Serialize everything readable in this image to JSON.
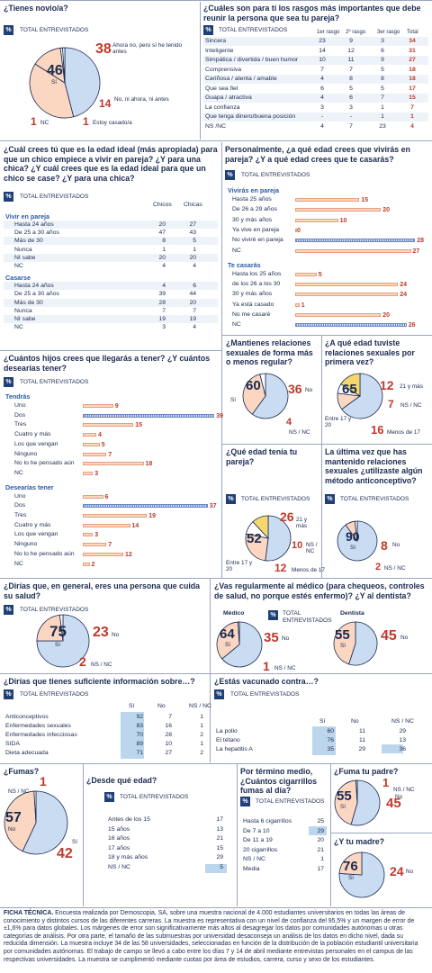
{
  "common": {
    "total": "TOTAL ENTREVISTADOS",
    "pct": "%"
  },
  "colors": {
    "blue_fill": "#c9dcf2",
    "red_fill": "#fbd6c0",
    "navy": "#1a2a50",
    "red": "#c0392b",
    "yellow": "#f5d76e",
    "highlight": "#bcd6ee"
  },
  "q1": {
    "title": "¿Tienes novio/a?",
    "slices": [
      {
        "label": "Sí",
        "value": 46,
        "color": "#c9dcf2"
      },
      {
        "label": "Ahora no, pero sí he tenido antes",
        "value": 38,
        "color": "#fbd6c0"
      },
      {
        "label": "No, ni ahora, ni antes",
        "value": 14,
        "color": "#fbd6c0"
      },
      {
        "label": "Estoy casado/a",
        "value": 1,
        "color": "#ffffff"
      },
      {
        "label": "NC",
        "value": 1,
        "color": "#ffffff"
      }
    ]
  },
  "q2": {
    "title": "¿Cuáles son para tí los rasgos más importantes que debe reunir la persona que sea tu pareja?",
    "cols": [
      "1er rasgo",
      "2º rasgo",
      "3er rasgo",
      "Total"
    ],
    "rows": [
      [
        "Sincera",
        "23",
        "9",
        "3",
        "34"
      ],
      [
        "Inteligente",
        "14",
        "12",
        "6",
        "31"
      ],
      [
        "Simpática / divertida / buen humor",
        "10",
        "11",
        "9",
        "27"
      ],
      [
        "Comprensiva",
        "7",
        "7",
        "5",
        "18"
      ],
      [
        "Cariñosa / atenta / amable",
        "4",
        "8",
        "8",
        "18"
      ],
      [
        "Que sea fiel",
        "6",
        "5",
        "5",
        "17"
      ],
      [
        "Guapa / atractiva",
        "4",
        "6",
        "7",
        "15"
      ],
      [
        "La confianza",
        "3",
        "3",
        "1",
        "7"
      ],
      [
        "Que tenga dinero/buena posición",
        "-",
        "-",
        "1",
        "1"
      ],
      [
        "NS /NC",
        "4",
        "7",
        "23",
        "4"
      ]
    ]
  },
  "q3": {
    "title": "¿Cuál crees tú que es la edad ideal (más apropiada) para que un chico empiece a vivir en pareja? ¿Y para una chica? ¿Y cuál crees que es la edad ideal para que un chico se case? ¿Y para una chica?",
    "cols": [
      "Chicos",
      "Chicas"
    ],
    "sections": [
      {
        "name": "Vivir en pareja",
        "rows": [
          [
            "Hasta 24 años",
            "20",
            "27"
          ],
          [
            "De 25 a 30 años",
            "47",
            "43"
          ],
          [
            "Más de 30",
            "8",
            "5"
          ],
          [
            "Nunca",
            "1",
            "1"
          ],
          [
            "NI sabe",
            "20",
            "20"
          ],
          [
            "NC",
            "4",
            "4"
          ]
        ]
      },
      {
        "name": "Casarse",
        "rows": [
          [
            "Hasta 24 años",
            "4",
            "6"
          ],
          [
            "De 25 a 30 años",
            "39",
            "44"
          ],
          [
            "Más de 30",
            "28",
            "20"
          ],
          [
            "Nunca",
            "7",
            "7"
          ],
          [
            "NI sabe",
            "19",
            "19"
          ],
          [
            "NC",
            "3",
            "4"
          ]
        ]
      }
    ]
  },
  "q4": {
    "title": "Personalmente, ¿a qué edad crees que vivirás en pareja? ¿Y a qué edad crees que te casarás?",
    "sections": [
      {
        "name": "Vivirás en pareja",
        "rows": [
          {
            "label": "Hasta 25 años",
            "value": 15
          },
          {
            "label": "De 26 a 29 años",
            "value": 20
          },
          {
            "label": "30 y más años",
            "value": 10
          },
          {
            "label": "Ya vive en pareja",
            "value": 0
          },
          {
            "label": "No viviré en pareja",
            "value": 28,
            "dotted": true
          },
          {
            "label": "NC",
            "value": 27
          }
        ]
      },
      {
        "name": "Te casarás",
        "rows": [
          {
            "label": "Hasta los 25 años",
            "value": 5
          },
          {
            "label": "de los 26 a los 30",
            "value": 24
          },
          {
            "label": "30 y más años",
            "value": 24
          },
          {
            "label": "Ya está casado",
            "value": 1
          },
          {
            "label": "No me casaré",
            "value": 20
          },
          {
            "label": "NC",
            "value": 26,
            "dotted": true
          }
        ]
      }
    ]
  },
  "q5": {
    "title": "¿Cuántos hijos crees que llegarás a tener? ¿Y cuántos desearías tener?",
    "sections": [
      {
        "name": "Tendrás",
        "rows": [
          {
            "label": "Uno",
            "value": 9
          },
          {
            "label": "Dos",
            "value": 39,
            "dotted": true
          },
          {
            "label": "Tres",
            "value": 15
          },
          {
            "label": "Cuatro y más",
            "value": 4
          },
          {
            "label": "Los que vengan",
            "value": 5
          },
          {
            "label": "Ninguno",
            "value": 7
          },
          {
            "label": "No lo he pensado aún",
            "value": 18
          },
          {
            "label": "NC",
            "value": 3
          }
        ]
      },
      {
        "name": "Desearías tener",
        "rows": [
          {
            "label": "Uno",
            "value": 6
          },
          {
            "label": "Dos",
            "value": 37,
            "dotted": true
          },
          {
            "label": "Tres",
            "value": 19
          },
          {
            "label": "Cuatro y más",
            "value": 14
          },
          {
            "label": "Los que vengan",
            "value": 3
          },
          {
            "label": "Ninguno",
            "value": 7
          },
          {
            "label": "No lo he pensado aún",
            "value": 12
          },
          {
            "label": "NC",
            "value": 2
          }
        ]
      }
    ]
  },
  "q6": {
    "title": "¿Mantienes relaciones sexuales de forma más o menos regular?",
    "slices": [
      {
        "label": "Sí",
        "value": 60,
        "color": "#c9dcf2"
      },
      {
        "label": "No",
        "value": 36,
        "color": "#fbd6c0"
      },
      {
        "label": "NS / NC",
        "value": 4,
        "color": "#ffffff"
      }
    ]
  },
  "q7": {
    "title": "¿A qué edad tuviste relaciones sexuales por primera vez?",
    "slices": [
      {
        "label": "Entre 17 y 20",
        "value": 65,
        "color": "#c9dcf2"
      },
      {
        "label": "21 y más",
        "value": 12,
        "color": "#fbd6c0"
      },
      {
        "label": "NS / NC",
        "value": 7,
        "color": "#ffffff"
      },
      {
        "label": "Menos de 17",
        "value": 16,
        "color": "#f5d76e"
      }
    ]
  },
  "q8": {
    "title": "¿Qué edad tenía tu pareja?",
    "slices": [
      {
        "label": "Entre 17 y 20",
        "value": 52,
        "color": "#c9dcf2"
      },
      {
        "label": "21 y más",
        "value": 26,
        "color": "#fbd6c0"
      },
      {
        "label": "NS / NC",
        "value": 10,
        "color": "#ffffff"
      },
      {
        "label": "Menos de 17",
        "value": 12,
        "color": "#f5d76e"
      }
    ]
  },
  "q9": {
    "title": "La última vez que has mantenido relaciones sexuales ¿utilizaste algún método anticonceptivo?",
    "slices": [
      {
        "label": "Sí",
        "value": 90,
        "color": "#c9dcf2"
      },
      {
        "label": "No",
        "value": 8,
        "color": "#fbd6c0"
      },
      {
        "label": "NS / NC",
        "value": 2,
        "color": "#ffffff"
      }
    ]
  },
  "q10": {
    "title": "¿Dirías que, en general, eres una persona que cuida su salud?",
    "slices": [
      {
        "label": "Sí",
        "value": 75,
        "color": "#c9dcf2"
      },
      {
        "label": "No",
        "value": 23,
        "color": "#fbd6c0"
      },
      {
        "label": "NS / NC",
        "value": 2,
        "color": "#ffffff"
      }
    ]
  },
  "q11": {
    "title": "¿Vas regularmente al médico (para chequeos, controles de salud, no porque estés enfermo)? ¿Y al dentista?",
    "medico": {
      "name": "Médico",
      "slices": [
        {
          "label": "Sí",
          "value": 64,
          "color": "#c9dcf2"
        },
        {
          "label": "No",
          "value": 35,
          "color": "#fbd6c0"
        },
        {
          "label": "NS / NC",
          "value": 1,
          "color": "#ffffff"
        }
      ]
    },
    "dentista": {
      "name": "Dentista",
      "slices": [
        {
          "label": "Sí",
          "value": 55,
          "color": "#c9dcf2"
        },
        {
          "label": "No",
          "value": 45,
          "color": "#fbd6c0"
        }
      ]
    }
  },
  "q12": {
    "title": "¿Dirías que tienes suficiente información sobre…?",
    "cols": [
      "Sí",
      "No",
      "NS / NC"
    ],
    "rows": [
      [
        "Anticonceptivos",
        "92",
        "7",
        "1"
      ],
      [
        "Enfermedades sexuales",
        "83",
        "16",
        "1"
      ],
      [
        "Enfermedades infecciosas",
        "70",
        "28",
        "2"
      ],
      [
        "SIDA",
        "89",
        "10",
        "1"
      ],
      [
        "Dieta adecuada",
        "71",
        "27",
        "2"
      ]
    ]
  },
  "q13": {
    "title": "¿Estás vacunado contra…?",
    "cols": [
      "Sí",
      "No",
      "NS / NC"
    ],
    "rows": [
      [
        "La polio",
        "60",
        "11",
        "29"
      ],
      [
        "El tétano",
        "76",
        "11",
        "13"
      ],
      [
        "La hepatitis A",
        "35",
        "29",
        "36"
      ]
    ]
  },
  "q14": {
    "title": "¿Fumas?",
    "slices": [
      {
        "label": "No",
        "value": 57,
        "color": "#c9dcf2"
      },
      {
        "label": "Sí",
        "value": 42,
        "color": "#fbd6c0"
      },
      {
        "label": "NS / NC",
        "value": 1,
        "color": "#ffffff"
      }
    ]
  },
  "q15": {
    "title": "¿Desde qué edad?",
    "rows": [
      [
        "Antes de los 15",
        "17"
      ],
      [
        "15 años",
        "13"
      ],
      [
        "16 años",
        "21"
      ],
      [
        "17 años",
        "15"
      ],
      [
        "18 y más años",
        "29"
      ],
      [
        "NS / NC",
        "5"
      ]
    ]
  },
  "q16": {
    "title": "Por término medio, ¿Cuántos cigarrillos fumas al día?",
    "rows": [
      [
        "Hasta 6 cigarrillos",
        "25"
      ],
      [
        "De 7 a 10",
        "29"
      ],
      [
        "De 11 a 19",
        "20"
      ],
      [
        "20 cigarrillos",
        "21"
      ],
      [
        "NS / NC",
        "1"
      ],
      [
        "Media",
        "17"
      ]
    ]
  },
  "q17": {
    "title": "¿Fuma tu padre?",
    "slices": [
      {
        "label": "Sí",
        "value": 55,
        "color": "#c9dcf2"
      },
      {
        "label": "No",
        "value": 45,
        "color": "#fbd6c0"
      },
      {
        "label": "NS / NC",
        "value": 1,
        "color": "#ffffff"
      }
    ]
  },
  "q18": {
    "title": "¿Y tu madre?",
    "slices": [
      {
        "label": "Sí",
        "value": 76,
        "color": "#c9dcf2"
      },
      {
        "label": "No",
        "value": 24,
        "color": "#fbd6c0"
      }
    ]
  },
  "footer": {
    "label": "FICHA TÉCNICA.",
    "text": "Encuesta realizada por Demoscopia, SA, sobre una muestra nacional de 4.000 estudiantes universitarios en todas las áreas de conocimiento y distintos cursos de las diferentes carreras. La muestra es representativa con un nivel de confianza del 95,5% y un margen de error de ±1,6% para datos globales. Los márgenes de error son significativamente más altos al desagregar los datos por comunidades autónomas u otras categorías de análisis. Por otra parte, el tamaño de las submuestras por universidad desaconseja un análisis de los datos en dicho nivel, dada su reducida dimensión. La muestra incluye 34 de las 58 universidades, seleccionadas en función de la distribución de la población estudiantil universitaria por comunidades autónomas. El trabajo de campo se llevó a cabo entre los días 7 y 14 de abril mediante entrevistas personales en el campus de las respectivas universidades. La muestra se cumplimentó mediante cuotas por área de estudios, carrera, curso y sexo de los estudiantes."
  },
  "chart_data": [
    {
      "type": "pie",
      "title": "¿Tienes novio/a?",
      "categories": [
        "Sí",
        "Ahora no, pero sí he tenido antes",
        "No, ni ahora, ni antes",
        "Estoy casado/a",
        "NC"
      ],
      "values": [
        46,
        38,
        14,
        1,
        1
      ]
    },
    {
      "type": "table",
      "title": "¿Cuáles son para tí los rasgos más importantes que debe reunir la persona que sea tu pareja?",
      "columns": [
        "1er rasgo",
        "2º rasgo",
        "3er rasgo",
        "Total"
      ]
    },
    {
      "type": "table",
      "title": "¿Cuál crees tú que es la edad ideal (más apropiada) para que un chico empiece a vivir en pareja? ¿Y para una chica? ¿Y cuál crees que es la edad ideal para que un chico se case? ¿Y para una chica?",
      "columns": [
        "Chicos",
        "Chicas"
      ]
    },
    {
      "type": "bar",
      "title": "Personalmente, ¿a qué edad crees que vivirás en pareja? ¿Y a qué edad crees que te casarás?",
      "series": [
        {
          "name": "Vivirás en pareja",
          "categories": [
            "Hasta 25 años",
            "De 26 a 29 años",
            "30 y más años",
            "Ya vive en pareja",
            "No viviré en pareja",
            "NC"
          ],
          "values": [
            15,
            20,
            10,
            0,
            28,
            27
          ]
        },
        {
          "name": "Te casarás",
          "categories": [
            "Hasta los 25 años",
            "de los 26 a los 30",
            "30 y más años",
            "Ya está casado",
            "No me casaré",
            "NC"
          ],
          "values": [
            5,
            24,
            24,
            1,
            20,
            26
          ]
        }
      ]
    },
    {
      "type": "bar",
      "title": "¿Cuántos hijos crees que llegarás a tener? ¿Y cuántos desearías tener?",
      "categories": [
        "Uno",
        "Dos",
        "Tres",
        "Cuatro y más",
        "Los que vengan",
        "Ninguno",
        "No lo he pensado aún",
        "NC"
      ],
      "series": [
        {
          "name": "Tendrás",
          "values": [
            9,
            39,
            15,
            4,
            5,
            7,
            18,
            3
          ]
        },
        {
          "name": "Desearías tener",
          "values": [
            6,
            37,
            19,
            14,
            3,
            7,
            12,
            2
          ]
        }
      ]
    },
    {
      "type": "pie",
      "title": "¿Mantienes relaciones sexuales de forma más o menos regular?",
      "categories": [
        "Sí",
        "No",
        "NS / NC"
      ],
      "values": [
        60,
        36,
        4
      ]
    },
    {
      "type": "pie",
      "title": "¿A qué edad tuviste relaciones sexuales por primera vez?",
      "categories": [
        "Entre 17 y 20",
        "21 y más",
        "NS / NC",
        "Menos de 17"
      ],
      "values": [
        65,
        12,
        7,
        16
      ]
    },
    {
      "type": "pie",
      "title": "¿Qué edad tenía tu pareja?",
      "categories": [
        "Entre 17 y 20",
        "21 y más",
        "NS / NC",
        "Menos de 17"
      ],
      "values": [
        52,
        26,
        10,
        12
      ]
    },
    {
      "type": "pie",
      "title": "La última vez que has mantenido relaciones sexuales ¿utilizaste algún método anticonceptivo?",
      "categories": [
        "Sí",
        "No",
        "NS / NC"
      ],
      "values": [
        90,
        8,
        2
      ]
    },
    {
      "type": "pie",
      "title": "¿Dirías que, en general, eres una persona que cuida su salud?",
      "categories": [
        "Sí",
        "No",
        "NS / NC"
      ],
      "values": [
        75,
        23,
        2
      ]
    },
    {
      "type": "pie",
      "title": "Médico",
      "categories": [
        "Sí",
        "No",
        "NS / NC"
      ],
      "values": [
        64,
        35,
        1
      ]
    },
    {
      "type": "pie",
      "title": "Dentista",
      "categories": [
        "Sí",
        "No"
      ],
      "values": [
        55,
        45
      ]
    },
    {
      "type": "table",
      "title": "¿Dirías que tienes suficiente información sobre…?",
      "columns": [
        "Sí",
        "No",
        "NS / NC"
      ]
    },
    {
      "type": "table",
      "title": "¿Estás vacunado contra…?",
      "columns": [
        "Sí",
        "No",
        "NS / NC"
      ]
    },
    {
      "type": "pie",
      "title": "¿Fumas?",
      "categories": [
        "No",
        "Sí",
        "NS / NC"
      ],
      "values": [
        57,
        42,
        1
      ]
    },
    {
      "type": "table",
      "title": "¿Desde qué edad?"
    },
    {
      "type": "table",
      "title": "Por término medio, ¿Cuántos cigarrillos fumas al día?"
    },
    {
      "type": "pie",
      "title": "¿Fuma tu padre?",
      "categories": [
        "Sí",
        "No",
        "NS / NC"
      ],
      "values": [
        55,
        45,
        1
      ]
    },
    {
      "type": "pie",
      "title": "¿Y tu madre?",
      "categories": [
        "Sí",
        "No"
      ],
      "values": [
        76,
        24
      ]
    }
  ]
}
